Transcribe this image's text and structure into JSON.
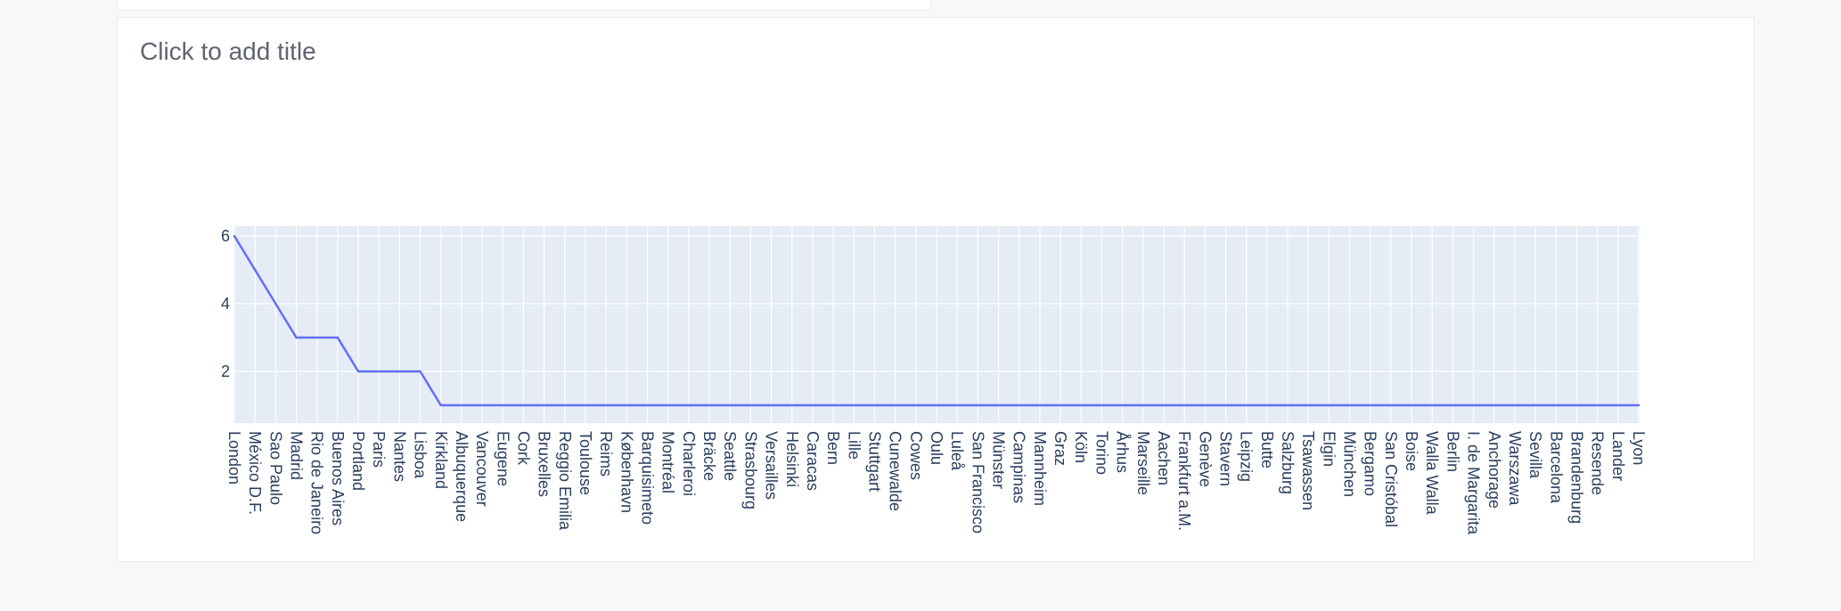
{
  "card": {
    "title_placeholder": "Click to add title"
  },
  "colors": {
    "plot_bg": "#e5ecf6",
    "grid": "#ffffff",
    "line": "#636efa",
    "tick_text": "#2a3f5f"
  },
  "chart_data": {
    "type": "line",
    "title": "",
    "xlabel": "",
    "ylabel": "",
    "grid": true,
    "yticks": [
      2,
      4,
      6
    ],
    "ylim": [
      0.5,
      6
    ],
    "categories": [
      "London",
      "México D.F.",
      "Sao Paulo",
      "Madrid",
      "Rio de Janeiro",
      "Buenos Aires",
      "Portland",
      "Paris",
      "Nantes",
      "Lisboa",
      "Kirkland",
      "Albuquerque",
      "Vancouver",
      "Eugene",
      "Cork",
      "Bruxelles",
      "Reggio Emilia",
      "Toulouse",
      "Reims",
      "København",
      "Barquisimeto",
      "Montréal",
      "Charleroi",
      "Bräcke",
      "Seattle",
      "Strasbourg",
      "Versailles",
      "Helsinki",
      "Caracas",
      "Bern",
      "Lille",
      "Stuttgart",
      "Cunewalde",
      "Cowes",
      "Oulu",
      "Luleå",
      "San Francisco",
      "Münster",
      "Campinas",
      "Mannheim",
      "Graz",
      "Köln",
      "Torino",
      "Århus",
      "Marseille",
      "Aachen",
      "Frankfurt a.M.",
      "Genève",
      "Stavern",
      "Leipzig",
      "Butte",
      "Salzburg",
      "Tsawassen",
      "Elgin",
      "München",
      "Bergamo",
      "San Cristóbal",
      "Boise",
      "Walla Walla",
      "Berlin",
      "I. de Margarita",
      "Anchorage",
      "Warszawa",
      "Sevilla",
      "Barcelona",
      "Brandenburg",
      "Resende",
      "Lander",
      "Lyon"
    ],
    "series": [
      {
        "values": [
          6,
          5,
          4,
          3,
          3,
          3,
          2,
          2,
          2,
          2,
          1,
          1,
          1,
          1,
          1,
          1,
          1,
          1,
          1,
          1,
          1,
          1,
          1,
          1,
          1,
          1,
          1,
          1,
          1,
          1,
          1,
          1,
          1,
          1,
          1,
          1,
          1,
          1,
          1,
          1,
          1,
          1,
          1,
          1,
          1,
          1,
          1,
          1,
          1,
          1,
          1,
          1,
          1,
          1,
          1,
          1,
          1,
          1,
          1,
          1,
          1,
          1,
          1,
          1,
          1,
          1,
          1,
          1,
          1
        ]
      }
    ]
  }
}
